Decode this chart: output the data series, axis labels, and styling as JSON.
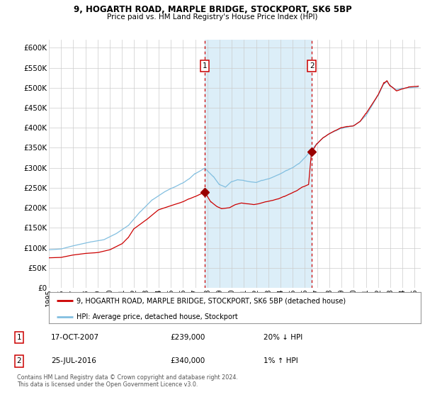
{
  "title1": "9, HOGARTH ROAD, MARPLE BRIDGE, STOCKPORT, SK6 5BP",
  "title2": "Price paid vs. HM Land Registry's House Price Index (HPI)",
  "ylim": [
    0,
    620000
  ],
  "xlim_start": 1995.0,
  "xlim_end": 2025.5,
  "yticks": [
    0,
    50000,
    100000,
    150000,
    200000,
    250000,
    300000,
    350000,
    400000,
    450000,
    500000,
    550000,
    600000
  ],
  "ytick_labels": [
    "£0",
    "£50K",
    "£100K",
    "£150K",
    "£200K",
    "£250K",
    "£300K",
    "£350K",
    "£400K",
    "£450K",
    "£500K",
    "£550K",
    "£600K"
  ],
  "xtick_years": [
    1995,
    1996,
    1997,
    1998,
    1999,
    2000,
    2001,
    2002,
    2003,
    2004,
    2005,
    2006,
    2007,
    2008,
    2009,
    2010,
    2011,
    2012,
    2013,
    2014,
    2015,
    2016,
    2017,
    2018,
    2019,
    2020,
    2021,
    2022,
    2023,
    2024,
    2025
  ],
  "sale1_x": 2007.79,
  "sale1_y": 239000,
  "sale2_x": 2016.56,
  "sale2_y": 340000,
  "shade_color": "#dceef8",
  "hpi_color": "#82bfe0",
  "price_color": "#cc0000",
  "dot_color": "#990000",
  "dashed_line_color": "#cc0000",
  "legend_label1": "9, HOGARTH ROAD, MARPLE BRIDGE, STOCKPORT, SK6 5BP (detached house)",
  "legend_label2": "HPI: Average price, detached house, Stockport",
  "annotation1_date": "17-OCT-2007",
  "annotation1_price": "£239,000",
  "annotation1_hpi": "20% ↓ HPI",
  "annotation2_date": "25-JUL-2016",
  "annotation2_price": "£340,000",
  "annotation2_hpi": "1% ↑ HPI",
  "footer": "Contains HM Land Registry data © Crown copyright and database right 2024.\nThis data is licensed under the Open Government Licence v3.0.",
  "bg_color": "#ffffff",
  "grid_color": "#cccccc"
}
